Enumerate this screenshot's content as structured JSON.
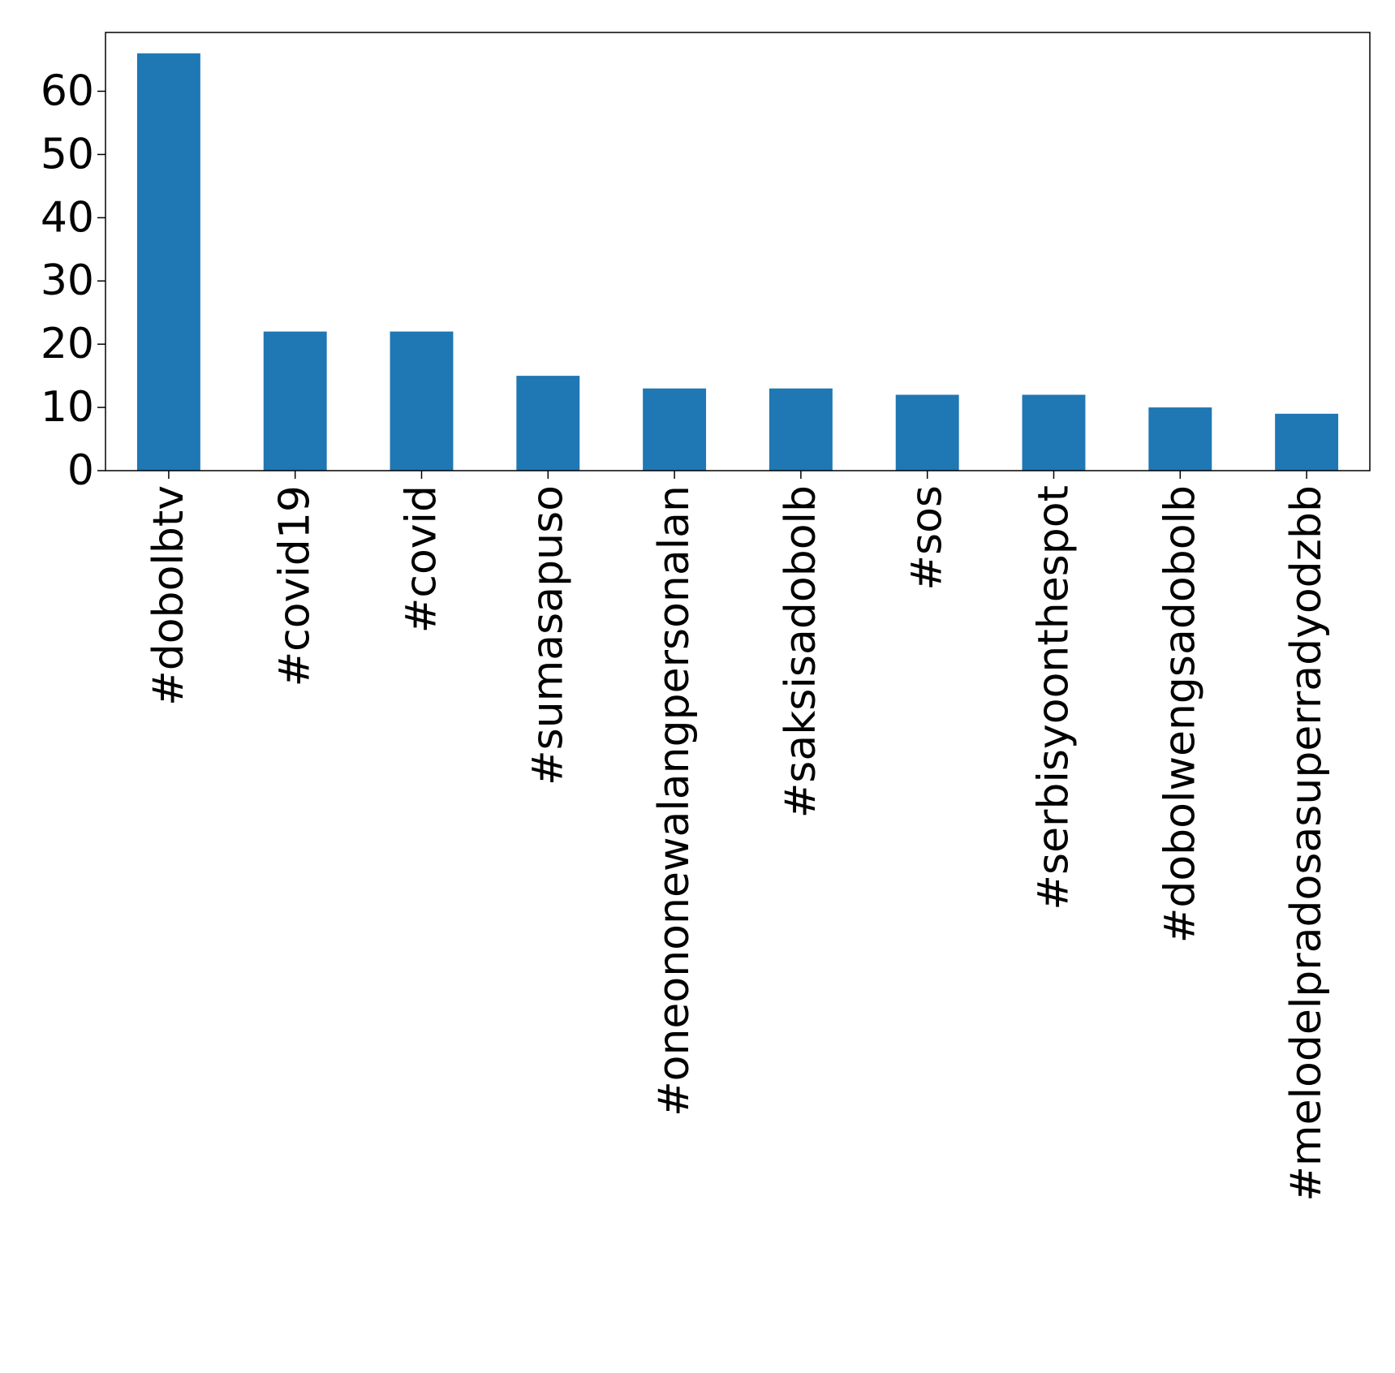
{
  "chart_data": {
    "type": "bar",
    "title": "",
    "xlabel": "",
    "ylabel": "",
    "categories": [
      "#dobolbtv",
      "#covid19",
      "#covid",
      "#sumasapuso",
      "#oneononewalangpersonalan",
      "#saksisadobolb",
      "#sos",
      "#serbisyoonthespot",
      "#dobolwengsadobolb",
      "#melodelpradosasuperradyodzbb"
    ],
    "values": [
      66,
      22,
      22,
      15,
      13,
      13,
      12,
      12,
      10,
      9
    ],
    "ylim": [
      0,
      69.3
    ],
    "yticks": [
      0,
      10,
      20,
      30,
      40,
      50,
      60
    ],
    "bar_color": "#1f77b4",
    "grid": false,
    "legend": "none"
  }
}
